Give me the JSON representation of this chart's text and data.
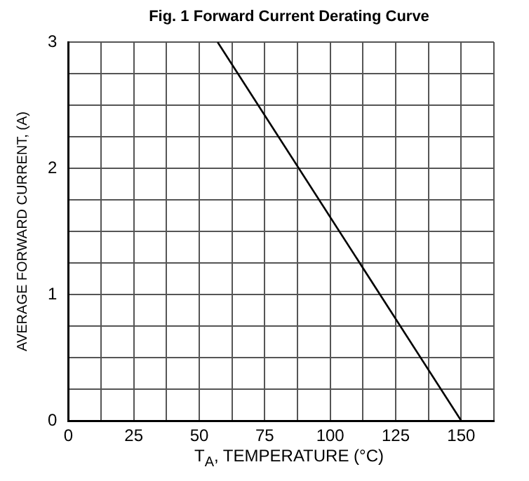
{
  "chart_data": {
    "type": "line",
    "title": "Fig. 1 Forward Current Derating Curve",
    "xlabel": "T$_{A}$, TEMPERATURE (°C)",
    "ylabel": "AVERAGE FORWARD CURRENT, (A)",
    "series": [
      {
        "color": "#000000",
        "x": [
          57,
          150
        ],
        "values": [
          3,
          0
        ]
      }
    ],
    "xlim": [
      0,
      162.5
    ],
    "xticks": [
      0,
      {
        "value": 12.5,
        "label": null
      },
      25,
      {
        "value": 37.5,
        "label": null
      },
      50,
      {
        "value": 62.5,
        "label": null
      },
      75,
      {
        "value": 87.5,
        "label": null
      },
      100,
      {
        "value": 112.5,
        "label": null
      },
      125,
      {
        "value": 137.5,
        "label": null
      },
      150,
      {
        "value": 162.5,
        "label": null
      }
    ],
    "ylim": [
      0,
      3
    ],
    "yticks": [
      0,
      {
        "value": 0.25,
        "label": null
      },
      {
        "value": 0.5,
        "label": null
      },
      {
        "value": 0.75,
        "label": null
      },
      1,
      {
        "value": 1.25,
        "label": null
      },
      {
        "value": 1.5,
        "label": null
      },
      {
        "value": 1.75,
        "label": null
      },
      2,
      {
        "value": 2.25,
        "label": null
      },
      {
        "value": 2.5,
        "label": null
      },
      {
        "value": 2.75,
        "label": null
      },
      3
    ],
    "grid": true,
    "legend": false,
    "marker": "none",
    "line_style": "solid"
  }
}
